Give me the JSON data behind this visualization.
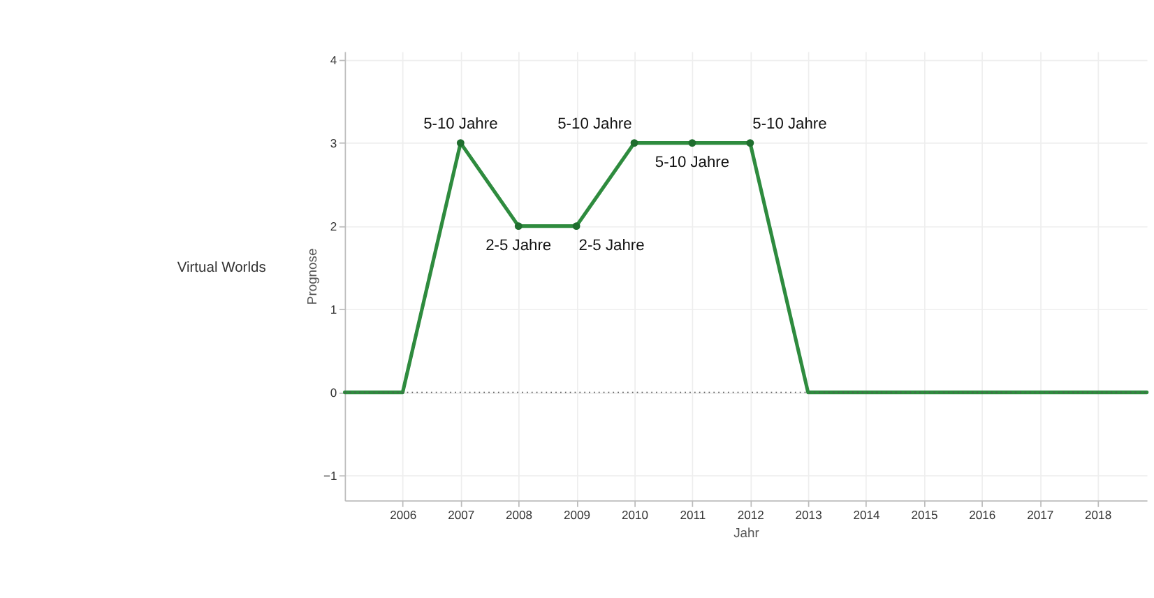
{
  "chart_data": {
    "type": "line",
    "xlabel": "Jahr",
    "ylabel": "Prognose",
    "annotations": [
      "Virtual Worlds"
    ],
    "xlim": [
      2005,
      2018.85
    ],
    "xticks": [
      2006,
      2007,
      2008,
      2009,
      2010,
      2011,
      2012,
      2013,
      2014,
      2015,
      2016,
      2017,
      2018
    ],
    "ylim": [
      -1.3,
      4.1
    ],
    "yticks": [
      -1,
      0,
      1,
      2,
      3,
      4
    ],
    "grid": true,
    "ref_lines": [
      {
        "axis": "y",
        "value": 0,
        "color": "#555555",
        "line_style": "dotted"
      }
    ],
    "series": [
      {
        "color": "#2e8b3e",
        "marker": "none",
        "x": [
          2005,
          2006,
          2007,
          2008,
          2009,
          2010,
          2011,
          2012,
          2013,
          2018.85
        ],
        "values": [
          0,
          0,
          3,
          2,
          2,
          3,
          3,
          3,
          0,
          0
        ]
      },
      {
        "type": "scatter",
        "color": "#1f6e2e",
        "marker": "circle",
        "x": [
          2007,
          2008,
          2009,
          2010,
          2011,
          2012
        ],
        "values": [
          3,
          2,
          2,
          3,
          3,
          3
        ],
        "value_labels": [
          "5-10 Jahre",
          "2-5 Jahre",
          "2-5 Jahre",
          "5-10 Jahre",
          "5-10 Jahre",
          "5-10 Jahre"
        ]
      }
    ]
  }
}
